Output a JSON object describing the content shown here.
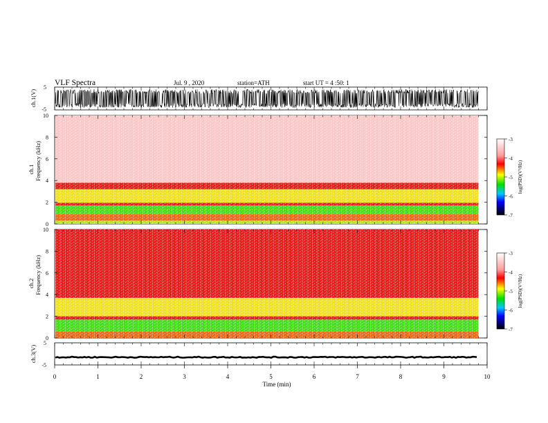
{
  "header": {
    "title": "VLF Spectra",
    "date": "Jul. 9 , 2020",
    "station": "station=ATH",
    "start": "start UT = 4 :50: 1"
  },
  "chart_data": [
    {
      "type": "line",
      "name": "ch1-waveform",
      "ylabel": "ch.1(V)",
      "ylim": [
        -5,
        5
      ],
      "y_ticks": [
        "5",
        "-5"
      ],
      "x_range_min": [
        0,
        9.8
      ],
      "amplitude_band": [
        -4.0,
        4.0
      ],
      "color": "#000000"
    },
    {
      "type": "heatmap",
      "name": "ch1-spectrogram",
      "ylabel": "Frequency (kHz)",
      "channel_label": "ch.1",
      "ylim_khz": [
        0,
        10
      ],
      "y_ticks": [
        "0",
        "2",
        "4",
        "6",
        "8",
        "10"
      ],
      "x_range_min": [
        0,
        9.8
      ],
      "bands_khz": [
        {
          "from": 0.0,
          "to": 0.3,
          "level": "green-yellow"
        },
        {
          "from": 0.3,
          "to": 0.9,
          "level": "red-yellow"
        },
        {
          "from": 0.9,
          "to": 1.7,
          "level": "green"
        },
        {
          "from": 1.7,
          "to": 1.95,
          "level": "red"
        },
        {
          "from": 1.95,
          "to": 3.2,
          "level": "yellow"
        },
        {
          "from": 3.2,
          "to": 3.8,
          "level": "red"
        },
        {
          "from": 3.8,
          "to": 10.0,
          "level": "light-red"
        }
      ],
      "colorbar": {
        "label": "log(PSD)(V²/Hz)",
        "ticks": [
          "-3",
          "-4",
          "-5",
          "-6",
          "-7"
        ]
      }
    },
    {
      "type": "heatmap",
      "name": "ch2-spectrogram",
      "ylabel": "Frequency (kHz)",
      "channel_label": "ch.2",
      "ylim_khz": [
        0,
        10
      ],
      "y_ticks": [
        "0",
        "2",
        "4",
        "6",
        "8",
        "10"
      ],
      "x_range_min": [
        0,
        9.8
      ],
      "bands_khz": [
        {
          "from": 0.0,
          "to": 0.6,
          "level": "red-yellow"
        },
        {
          "from": 0.6,
          "to": 1.7,
          "level": "green"
        },
        {
          "from": 1.7,
          "to": 2.0,
          "level": "red"
        },
        {
          "from": 2.0,
          "to": 3.7,
          "level": "yellow"
        },
        {
          "from": 3.7,
          "to": 10.0,
          "level": "red"
        }
      ],
      "colorbar": {
        "label": "log(PSD)(V²/Hz)",
        "ticks": [
          "-3",
          "-4",
          "-5",
          "-6",
          "-7"
        ]
      }
    },
    {
      "type": "line",
      "name": "ch3-waveform",
      "ylabel": "ch.3(V)",
      "ylim": [
        -5,
        5
      ],
      "y_ticks": [
        "5",
        "-5"
      ],
      "x_range_min": [
        0,
        9.8
      ],
      "level": -1.5,
      "color": "#000000"
    }
  ],
  "x_axis": {
    "label": "Time (min)",
    "ticks": [
      "0",
      "1",
      "2",
      "3",
      "4",
      "5",
      "6",
      "7",
      "8",
      "9",
      "10"
    ],
    "xlim": [
      0,
      10
    ]
  },
  "colors": {
    "light-red": "#fbc8c8",
    "red": "#ee1c1c",
    "yellow": "#f0e21e",
    "green": "#46e01a",
    "red-yellow": "#f06a1a",
    "green-yellow": "#b8e61e",
    "colorbar_stops": [
      "#ffffff",
      "#ff9a9a",
      "#ff0000",
      "#ffff00",
      "#00e000",
      "#00c8ff",
      "#0000ff",
      "#000000"
    ]
  }
}
